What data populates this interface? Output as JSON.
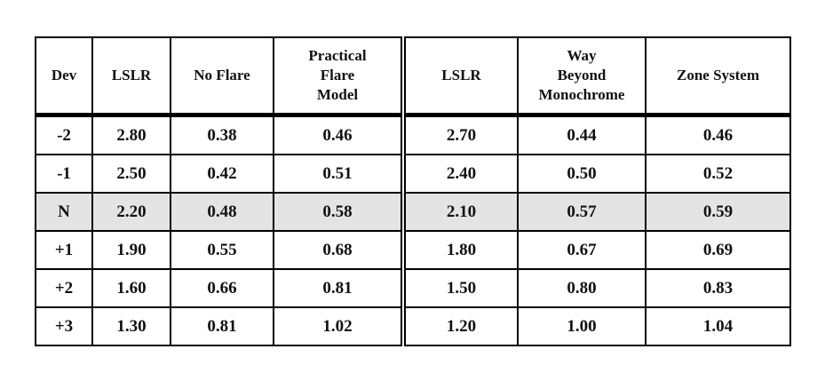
{
  "table": {
    "header": [
      "Dev",
      "LSLR",
      "No Flare",
      "Practical\nFlare\nModel",
      "LSLR",
      "Way\nBeyond\nMonochrome",
      "Zone System"
    ],
    "rows": [
      [
        "-2",
        "2.80",
        "0.38",
        "0.46",
        "2.70",
        "0.44",
        "0.46"
      ],
      [
        "-1",
        "2.50",
        "0.42",
        "0.51",
        "2.40",
        "0.50",
        "0.52"
      ],
      [
        "N",
        "2.20",
        "0.48",
        "0.58",
        "2.10",
        "0.57",
        "0.59"
      ],
      [
        "+1",
        "1.90",
        "0.55",
        "0.68",
        "1.80",
        "0.67",
        "0.69"
      ],
      [
        "+2",
        "1.60",
        "0.66",
        "0.81",
        "1.50",
        "0.80",
        "0.83"
      ],
      [
        "+3",
        "1.30",
        "0.81",
        "1.02",
        "1.20",
        "1.00",
        "1.04"
      ]
    ]
  }
}
